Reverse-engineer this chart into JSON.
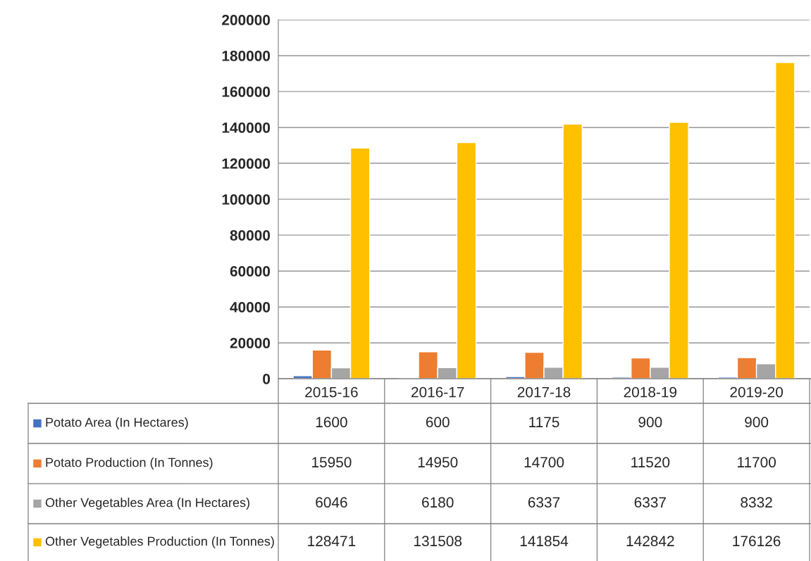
{
  "chart_data": {
    "type": "bar",
    "categories": [
      "2015-16",
      "2016-17",
      "2017-18",
      "2018-19",
      "2019-20"
    ],
    "series": [
      {
        "name": "Potato Area (In Hectares)",
        "color": "#4472c4",
        "values": [
          1600,
          600,
          1175,
          900,
          900
        ]
      },
      {
        "name": "Potato Production (In Tonnes)",
        "color": "#ed7d31",
        "values": [
          15950,
          14950,
          14700,
          11520,
          11700
        ]
      },
      {
        "name": "Other Vegetables Area (In Hectares)",
        "color": "#a5a5a5",
        "values": [
          6046,
          6180,
          6337,
          6337,
          8332
        ]
      },
      {
        "name": "Other Vegetables Production (In Tonnes)",
        "color": "#ffc000",
        "values": [
          128471,
          131508,
          141854,
          142842,
          176126
        ]
      }
    ],
    "ylim": [
      0,
      200000
    ],
    "yticks": [
      0,
      20000,
      40000,
      60000,
      80000,
      100000,
      120000,
      140000,
      160000,
      180000,
      200000
    ],
    "grid": "y",
    "legend": "bottom",
    "data_labels": true
  }
}
